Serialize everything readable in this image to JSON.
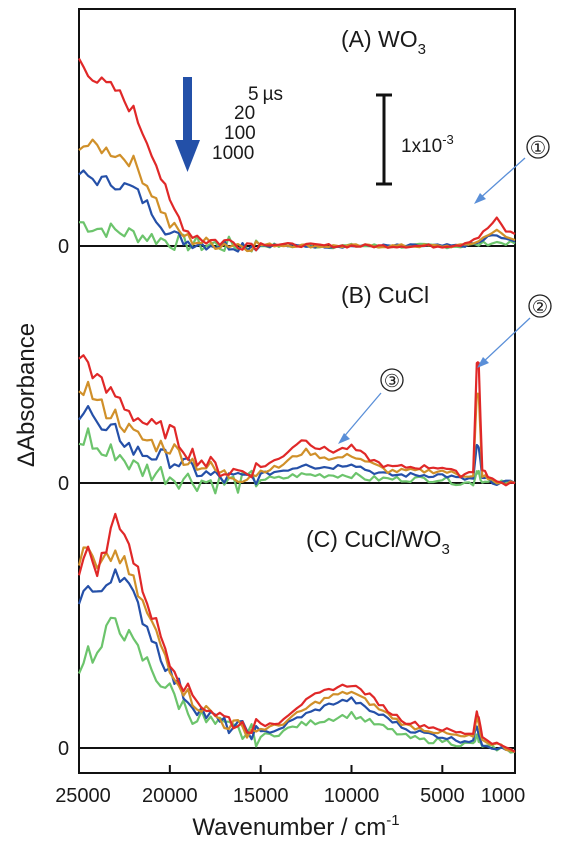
{
  "chart_data": {
    "type": "line",
    "xlabel_main": "Wavenumber /  cm",
    "xlabel_sup": "-1",
    "ylabel": "ΔAbsorbance",
    "xlim": [
      25000,
      1000
    ],
    "x_ticks": [
      25000,
      20000,
      15000,
      10000,
      5000,
      1000
    ],
    "x_tick_labels": [
      "25000",
      "20000",
      "15000",
      "10000",
      "5000",
      "1000"
    ],
    "zero_label": "0",
    "time_unit": "µs",
    "time_labels": [
      "5",
      "20",
      "100",
      "1000"
    ],
    "scale_bar": {
      "label": "1x10",
      "label_sup": "-3",
      "value": 0.001
    },
    "colors": {
      "5": "#e02828",
      "20": "#d0902a",
      "100": "#2550a8",
      "1000": "#6cc46c",
      "arrow": "#2350a8",
      "annot": "#5a8fd8",
      "axis": "#111111"
    },
    "panels": [
      {
        "id": "A",
        "label_main": "(A) WO",
        "label_sub": "3",
        "ylim": [
          -0.0003,
          0.0064
        ],
        "series": [
          {
            "name": "5",
            "x": [
              25000,
              24000,
              23000,
              22000,
              21000,
              20000,
              19000,
              18000,
              17000,
              16000,
              15000,
              14000,
              13000,
              12000,
              11000,
              10000,
              9000,
              8000,
              7000,
              6000,
              5000,
              4000,
              3000,
              2500,
              2000,
              1500,
              1000
            ],
            "y": [
              0.0062,
              0.0055,
              0.0052,
              0.0045,
              0.0032,
              0.0014,
              0.0005,
              0.0002,
              0.00015,
              0.0001,
              8e-05,
              5e-05,
              3e-05,
              2e-05,
              1e-05,
              0.0,
              0.0,
              0.0,
              0.0,
              0.0,
              0.0,
              5e-05,
              0.0003,
              0.0006,
              0.0009,
              0.0005,
              0.0004
            ]
          },
          {
            "name": "20",
            "x": [
              25000,
              24000,
              23000,
              22000,
              21000,
              20000,
              19000,
              18000,
              17000,
              16000,
              15000,
              14000,
              13000,
              12000,
              11000,
              10000,
              9000,
              8000,
              7000,
              6000,
              5000,
              4000,
              3000,
              2500,
              2000,
              1500,
              1000
            ],
            "y": [
              0.0034,
              0.0033,
              0.0031,
              0.0028,
              0.0018,
              0.0007,
              0.00025,
              0.0001,
              8e-05,
              5e-05,
              4e-05,
              3e-05,
              2e-05,
              0.0,
              0.0,
              0.0,
              0.0,
              0.0,
              0.0,
              0.0,
              0.0,
              0.0,
              0.00015,
              0.0004,
              0.0005,
              0.0003,
              0.0002
            ]
          },
          {
            "name": "100",
            "x": [
              25000,
              24000,
              23000,
              22000,
              21000,
              20000,
              19000,
              18000,
              17000,
              16000,
              15000,
              14000,
              13000,
              12000,
              11000,
              10000,
              9000,
              8000,
              7000,
              6000,
              5000,
              4000,
              3000,
              2500,
              2000,
              1500,
              1000
            ],
            "y": [
              0.0024,
              0.0022,
              0.0021,
              0.0019,
              0.0012,
              0.0004,
              0.00015,
              8e-05,
              5e-05,
              4e-05,
              3e-05,
              2e-05,
              0.0,
              0.0,
              0.0,
              0.0,
              0.0,
              0.0,
              0.0,
              0.0,
              0.0,
              0.0,
              0.0001,
              0.0003,
              0.00035,
              0.0002,
              0.00015
            ]
          },
          {
            "name": "1000",
            "x": [
              25000,
              24000,
              23000,
              22000,
              21000,
              20000,
              19000,
              18000,
              17000,
              16000,
              15000,
              14000,
              13000,
              12000,
              11000,
              10000,
              9000,
              8000,
              7000,
              6000,
              5000,
              4000,
              3000,
              2500,
              2000,
              1500,
              1000
            ],
            "y": [
              0.0008,
              0.0006,
              0.0005,
              0.0004,
              0.0003,
              0.00015,
              8e-05,
              4e-05,
              3e-05,
              2e-05,
              2e-05,
              1e-05,
              0.0,
              0.0,
              0.0,
              0.0,
              0.0,
              0.0,
              0.0,
              0.0,
              0.0,
              0.0,
              5e-05,
              0.0001,
              0.00012,
              0.0001,
              8e-05
            ]
          }
        ]
      },
      {
        "id": "B",
        "label_main": "(B) CuCl",
        "label_sub": "",
        "ylim": [
          -0.0003,
          0.0064
        ],
        "series": [
          {
            "name": "5",
            "x": [
              25000,
              24500,
              24000,
              23500,
              23000,
              22000,
              21000,
              20000,
              19000,
              18000,
              17000,
              16000,
              15000,
              14000,
              13000,
              12500,
              12000,
              11000,
              10000,
              9000,
              8000,
              7000,
              6000,
              5000,
              4000,
              3300,
              3100,
              3000,
              2800,
              2500,
              2000,
              1500,
              1000
            ],
            "y": [
              0.0032,
              0.003,
              0.0026,
              0.0023,
              0.0022,
              0.0017,
              0.0014,
              0.0013,
              0.0008,
              0.0005,
              0.0003,
              0.0003,
              0.0004,
              0.0006,
              0.001,
              0.0011,
              0.0009,
              0.0008,
              0.0009,
              0.0006,
              0.0004,
              0.0004,
              0.0004,
              0.0004,
              0.0002,
              0.0003,
              0.003,
              0.003,
              0.0003,
              0.0002,
              0.0,
              0.0,
              0.0
            ]
          },
          {
            "name": "20",
            "x": [
              25000,
              24500,
              24000,
              23500,
              23000,
              22000,
              21000,
              20000,
              19000,
              18000,
              17000,
              16000,
              15000,
              14000,
              13000,
              12500,
              12000,
              11000,
              10000,
              9000,
              8000,
              7000,
              6000,
              5000,
              4000,
              3300,
              3100,
              3000,
              2800,
              2500,
              2000,
              1500,
              1000
            ],
            "y": [
              0.0024,
              0.0024,
              0.002,
              0.0018,
              0.0017,
              0.0012,
              0.001,
              0.0009,
              0.0006,
              0.0004,
              0.0002,
              0.0002,
              0.0003,
              0.0004,
              0.0007,
              0.0008,
              0.0007,
              0.0006,
              0.0007,
              0.0005,
              0.0003,
              0.0003,
              0.0003,
              0.0003,
              0.0002,
              0.0002,
              0.0022,
              0.0022,
              0.0002,
              0.0001,
              0.0,
              0.0,
              0.0
            ]
          },
          {
            "name": "100",
            "x": [
              25000,
              24500,
              24000,
              23500,
              23000,
              22000,
              21000,
              20000,
              19000,
              18000,
              17000,
              16000,
              15000,
              14000,
              13000,
              12500,
              12000,
              11000,
              10000,
              9000,
              8000,
              7000,
              6000,
              5000,
              4000,
              3300,
              3100,
              3000,
              2800,
              2500,
              2000,
              1500,
              1000
            ],
            "y": [
              0.0018,
              0.002,
              0.0014,
              0.0012,
              0.0013,
              0.0008,
              0.0007,
              0.0006,
              0.0004,
              0.0002,
              0.0001,
              0.0001,
              0.0002,
              0.0003,
              0.0004,
              0.0005,
              0.0004,
              0.0004,
              0.0005,
              0.0003,
              0.0002,
              0.0002,
              0.0002,
              0.0002,
              0.0001,
              0.0001,
              0.0009,
              0.0009,
              0.0001,
              0.0001,
              0.0,
              0.0,
              0.0
            ]
          },
          {
            "name": "1000",
            "x": [
              25000,
              24500,
              24000,
              23500,
              23000,
              22000,
              21000,
              20000,
              19000,
              18000,
              17000,
              16000,
              15000,
              14000,
              13000,
              12500,
              12000,
              11000,
              10000,
              9000,
              8000,
              7000,
              6000,
              5000,
              4000,
              3300,
              3100,
              3000,
              2800,
              2500,
              2000,
              1500,
              1000
            ],
            "y": [
              0.001,
              0.0012,
              0.0008,
              0.0007,
              0.0008,
              0.0004,
              0.0003,
              0.0002,
              0.0001,
              5e-05,
              0.0,
              0.0,
              0.0001,
              0.0001,
              0.0002,
              0.0002,
              0.0002,
              0.0002,
              0.0002,
              0.0001,
              0.0001,
              0.0001,
              0.0001,
              0.0001,
              0.0,
              0.0,
              0.0003,
              0.0003,
              0.0,
              0.0,
              0.0,
              0.0,
              0.0
            ]
          }
        ]
      },
      {
        "id": "C",
        "label_main": "(C) CuCl/WO",
        "label_sub": "3",
        "ylim": [
          -0.0003,
          0.0064
        ],
        "series": [
          {
            "name": "5",
            "x": [
              25000,
              24500,
              24000,
              23500,
              23000,
              22500,
              22000,
              21000,
              20000,
              19000,
              18000,
              17000,
              16000,
              15000,
              14000,
              13000,
              12000,
              11000,
              10000,
              9000,
              8000,
              7000,
              6000,
              5000,
              4000,
              3300,
              3100,
              3000,
              2800,
              2000,
              1000
            ],
            "y": [
              0.0048,
              0.0052,
              0.0048,
              0.0053,
              0.0062,
              0.0058,
              0.005,
              0.0036,
              0.0024,
              0.0015,
              0.0011,
              0.0008,
              0.0006,
              0.0006,
              0.0007,
              0.0011,
              0.0014,
              0.0016,
              0.0017,
              0.0014,
              0.001,
              0.0007,
              0.0006,
              0.0005,
              0.0004,
              0.0004,
              0.001,
              0.0008,
              0.0003,
              0.0001,
              -0.0001
            ]
          },
          {
            "name": "20",
            "x": [
              25000,
              24500,
              24000,
              23500,
              23000,
              22500,
              22000,
              21000,
              20000,
              19000,
              18000,
              17000,
              16000,
              15000,
              14000,
              13000,
              12000,
              11000,
              10000,
              9000,
              8000,
              7000,
              6000,
              5000,
              4000,
              3300,
              3100,
              3000,
              2800,
              2000,
              1000
            ],
            "y": [
              0.005,
              0.0053,
              0.0047,
              0.005,
              0.0052,
              0.0049,
              0.0044,
              0.0033,
              0.0022,
              0.0014,
              0.001,
              0.0007,
              0.0005,
              0.0005,
              0.0006,
              0.0009,
              0.0012,
              0.0014,
              0.0015,
              0.0012,
              0.0009,
              0.0006,
              0.0005,
              0.0004,
              0.0003,
              0.0003,
              0.0008,
              0.0006,
              0.0002,
              0.0001,
              -0.0001
            ]
          },
          {
            "name": "100",
            "x": [
              25000,
              24500,
              24000,
              23500,
              23000,
              22500,
              22000,
              21000,
              20000,
              19000,
              18000,
              17000,
              16000,
              15000,
              14000,
              13000,
              12000,
              11000,
              10000,
              9000,
              8000,
              7000,
              6000,
              5000,
              4000,
              3300,
              3100,
              3000,
              2800,
              2000,
              1000
            ],
            "y": [
              0.004,
              0.0043,
              0.004,
              0.0044,
              0.0048,
              0.0045,
              0.004,
              0.003,
              0.002,
              0.0013,
              0.0009,
              0.0006,
              0.0005,
              0.0004,
              0.0005,
              0.0008,
              0.001,
              0.0012,
              0.0013,
              0.001,
              0.0008,
              0.0005,
              0.0004,
              0.0003,
              0.0002,
              0.0002,
              0.0006,
              0.0004,
              0.0001,
              0.0,
              -0.0001
            ]
          },
          {
            "name": "1000",
            "x": [
              25000,
              24500,
              24000,
              23500,
              23000,
              22500,
              22000,
              21000,
              20000,
              19000,
              18000,
              17000,
              16000,
              15000,
              14000,
              13000,
              12000,
              11000,
              10000,
              9000,
              8000,
              7000,
              6000,
              5000,
              4000,
              3300,
              3100,
              3000,
              2800,
              2000,
              1000
            ],
            "y": [
              0.0022,
              0.0026,
              0.0024,
              0.003,
              0.0035,
              0.0031,
              0.0027,
              0.0021,
              0.0015,
              0.001,
              0.0007,
              0.0005,
              0.0004,
              0.0003,
              0.0004,
              0.0006,
              0.0007,
              0.0008,
              0.0009,
              0.0007,
              0.0005,
              0.0003,
              0.0002,
              0.0002,
              0.0001,
              0.0001,
              0.0003,
              0.0002,
              0.0,
              0.0,
              -0.0001
            ]
          }
        ]
      }
    ],
    "annotations": [
      {
        "label": "①",
        "panel": "A",
        "target_x": 2500
      },
      {
        "label": "②",
        "panel": "B",
        "target_x": 3100
      },
      {
        "label": "③",
        "panel": "B",
        "target_x": 10500
      }
    ]
  }
}
